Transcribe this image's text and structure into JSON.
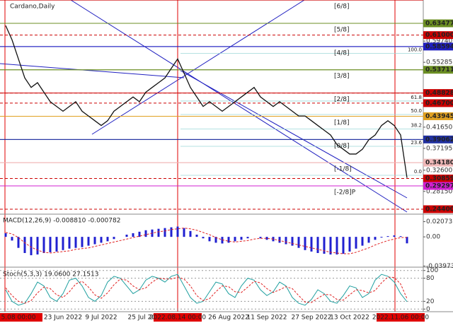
{
  "chart_data": [
    {
      "type": "line",
      "title": "Cardano,Daily",
      "color": "#111111",
      "categories": [
        null,
        null,
        "5.08 00:00",
        null,
        null,
        null,
        null,
        null,
        null,
        "23 Jun 2022",
        null,
        null,
        null,
        null,
        null,
        "9 Jul 2022",
        null,
        null,
        null,
        null,
        null,
        null,
        "25 Jul 2022",
        null,
        null,
        null,
        null,
        "2022.08.14 00:00",
        null,
        null,
        null,
        null,
        null,
        null,
        null,
        "26 Aug 2022",
        null,
        null,
        null,
        null,
        null,
        "11 Sep 2022",
        null,
        null,
        null,
        null,
        null,
        null,
        "27 Sep 2022",
        null,
        null,
        null,
        null,
        null,
        "13 Oct 2022",
        null,
        null,
        null,
        null,
        null,
        null,
        null,
        "2022.11.06 00:00",
        null
      ],
      "values": [
        0.63,
        0.6,
        0.56,
        0.52,
        0.5,
        0.51,
        0.49,
        0.47,
        0.46,
        0.45,
        0.46,
        0.47,
        0.45,
        0.44,
        0.43,
        0.42,
        0.43,
        0.45,
        0.46,
        0.47,
        0.48,
        0.47,
        0.49,
        0.5,
        0.51,
        0.52,
        0.54,
        0.56,
        0.53,
        0.5,
        0.48,
        0.46,
        0.47,
        0.46,
        0.45,
        0.46,
        0.47,
        0.48,
        0.49,
        0.5,
        0.48,
        0.47,
        0.46,
        0.47,
        0.46,
        0.45,
        0.44,
        0.44,
        0.43,
        0.42,
        0.41,
        0.4,
        0.38,
        0.37,
        0.36,
        0.36,
        0.37,
        0.39,
        0.4,
        0.42,
        0.43,
        0.42,
        0.4,
        0.31
      ],
      "ylim": [
        0.2351,
        0.6838
      ],
      "yticks": [
        {
          "value": 0.5974,
          "label": "0.59740"
        },
        0.55285,
        {
          "value": 0.4165,
          "label": "0.41650"
        },
        0.37195,
        {
          "value": 0.326,
          "label": "0.32600"
        },
        {
          "value": 0.2815,
          "label": "0.28150"
        }
      ],
      "levels": [
        {
          "value": 0.63477,
          "label": "0.63477",
          "color": "#6b8e23"
        },
        {
          "value": 0.61,
          "label": "0.61000",
          "color": "#cc0000"
        },
        {
          "value": 0.58594,
          "label": "0.58594",
          "color": "#2020c0"
        },
        {
          "value": 0.53711,
          "label": "0.53711",
          "color": "#6b8e23"
        },
        {
          "value": 0.48828,
          "label": "0.48828",
          "color": "#cc0000"
        },
        {
          "value": 0.467,
          "label": "0.46700",
          "color": "#cc0000"
        },
        {
          "value": 0.43945,
          "label": "0.43945",
          "color": "#e0a020"
        },
        {
          "value": 0.39062,
          "label": "0.39062",
          "color": "#2030a0"
        },
        {
          "value": 0.3418,
          "label": "0.34180",
          "color": "#f0b8b8"
        },
        {
          "value": 0.30859,
          "label": "0.30859",
          "color": "#cc0000"
        },
        {
          "value": 0.29297,
          "label": "0.29297",
          "color": "#d020d0"
        },
        {
          "value": 0.244,
          "label": "0.24400",
          "color": "#cc0000"
        }
      ],
      "murray": [
        {
          "value": 0.68359,
          "label": "[6/8]",
          "color": "#cc0000"
        },
        {
          "value": 0.63477,
          "label": "[5/8]",
          "color": "#6b8e23"
        },
        {
          "value": 0.58594,
          "label": "[4/8]",
          "color": "#2020c0"
        },
        {
          "value": 0.53711,
          "label": "[3/8]",
          "color": "#6b8e23"
        },
        {
          "value": 0.48828,
          "label": "[2/8]",
          "color": "#cc0000"
        },
        {
          "value": 0.43945,
          "label": "[1/8]",
          "color": "#e0a020"
        },
        {
          "value": 0.39062,
          "label": "[0/8]",
          "color": "#2030a0"
        },
        {
          "value": 0.3418,
          "label": "[-1/8]",
          "color": "#f0a0a0"
        },
        {
          "value": 0.29297,
          "label": "[-2/8]P",
          "color": "#d020d0"
        }
      ],
      "fib": [
        {
          "value": 0.5716,
          "label": "100.0"
        },
        {
          "value": 0.4714,
          "label": "61.8"
        },
        {
          "value": 0.4431,
          "label": "50.0"
        },
        {
          "value": 0.4125,
          "label": "38.2"
        },
        {
          "value": 0.3762,
          "label": "23.6"
        },
        {
          "value": 0.3153,
          "label": "0.0"
        }
      ]
    },
    {
      "type": "bar",
      "title": "MACD(12,26,9) -0.008810 -0.000782",
      "color": "#2020d0",
      "values": [
        0.005,
        -0.005,
        -0.015,
        -0.022,
        -0.025,
        -0.024,
        -0.022,
        -0.021,
        -0.02,
        -0.018,
        -0.016,
        -0.015,
        -0.014,
        -0.012,
        -0.01,
        -0.008,
        -0.006,
        -0.003,
        0,
        0.003,
        0.005,
        0.007,
        0.009,
        0.01,
        0.011,
        0.012,
        0.013,
        0.014,
        0.012,
        0.008,
        0.003,
        -0.002,
        -0.006,
        -0.008,
        -0.009,
        -0.008,
        -0.006,
        -0.004,
        -0.002,
        0,
        -0.002,
        -0.004,
        -0.006,
        -0.008,
        -0.01,
        -0.012,
        -0.015,
        -0.018,
        -0.02,
        -0.022,
        -0.023,
        -0.024,
        -0.024,
        -0.023,
        -0.02,
        -0.016,
        -0.012,
        -0.008,
        -0.004,
        -0.001,
        0.001,
        0.002,
        0.001,
        -0.00881
      ],
      "signal": {
        "color": "#e02020",
        "values": [
          0.006,
          0.004,
          -0.001,
          -0.008,
          -0.014,
          -0.018,
          -0.021,
          -0.022,
          -0.021,
          -0.02,
          -0.019,
          -0.017,
          -0.016,
          -0.015,
          -0.013,
          -0.011,
          -0.009,
          -0.007,
          -0.005,
          -0.003,
          -0.001,
          0.001,
          0.003,
          0.005,
          0.007,
          0.008,
          0.01,
          0.011,
          0.012,
          0.011,
          0.009,
          0.006,
          0.003,
          -0.001,
          -0.004,
          -0.006,
          -0.007,
          -0.006,
          -0.005,
          -0.003,
          -0.002,
          -0.002,
          -0.003,
          -0.005,
          -0.007,
          -0.009,
          -0.011,
          -0.013,
          -0.015,
          -0.017,
          -0.019,
          -0.021,
          -0.022,
          -0.023,
          -0.023,
          -0.021,
          -0.018,
          -0.015,
          -0.011,
          -0.008,
          -0.005,
          -0.003,
          -0.001,
          -0.000782
        ]
      },
      "ylim": [
        -0.0403,
        0.029
      ],
      "yticks": [
        0.020731,
        {
          "value": 0,
          "label": "0.00"
        },
        -0.03973
      ]
    },
    {
      "type": "line",
      "title": "Stoch(5,3,3) 19.0600 27.1513",
      "series": [
        {
          "color": "#20a0a0",
          "values": [
            50,
            20,
            10,
            15,
            40,
            70,
            60,
            30,
            20,
            40,
            75,
            80,
            60,
            30,
            20,
            35,
            70,
            85,
            80,
            60,
            40,
            50,
            75,
            85,
            80,
            70,
            85,
            90,
            60,
            30,
            15,
            20,
            45,
            70,
            65,
            40,
            30,
            60,
            80,
            75,
            50,
            35,
            45,
            70,
            60,
            30,
            15,
            10,
            25,
            50,
            40,
            20,
            15,
            35,
            60,
            55,
            30,
            40,
            75,
            90,
            85,
            70,
            40,
            19.06
          ]
        },
        {
          "color": "#e02020",
          "dashed": true,
          "values": [
            55,
            35,
            20,
            15,
            22,
            42,
            57,
            53,
            37,
            30,
            45,
            65,
            72,
            57,
            37,
            28,
            42,
            63,
            78,
            75,
            60,
            50,
            55,
            70,
            80,
            78,
            78,
            82,
            78,
            60,
            35,
            22,
            27,
            45,
            60,
            58,
            45,
            43,
            57,
            72,
            68,
            53,
            43,
            50,
            58,
            53,
            35,
            18,
            17,
            28,
            38,
            37,
            25,
            23,
            37,
            50,
            48,
            42,
            48,
            68,
            83,
            82,
            65,
            27.1513
          ]
        }
      ],
      "ylim": [
        -5,
        105
      ],
      "yticks": [
        100,
        80,
        20,
        0
      ]
    }
  ]
}
